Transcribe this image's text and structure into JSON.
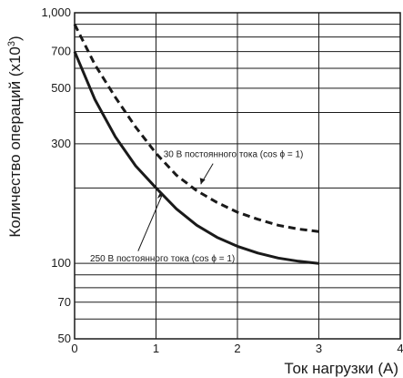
{
  "chart_data": {
    "type": "line",
    "xlabel": "Ток нагрузки (A)",
    "ylabel_main": "Количество операций (x10",
    "ylabel_exp": "3",
    "ylabel_close": ")",
    "xlim": [
      0,
      4
    ],
    "ylim": [
      50,
      1000
    ],
    "y_scale": "log",
    "grid": true,
    "x_ticks": [
      "0",
      "1",
      "2",
      "3",
      "4"
    ],
    "y_ticks": [
      {
        "value": 50,
        "label": "50"
      },
      {
        "value": 70,
        "label": "70"
      },
      {
        "value": 100,
        "label": "100"
      },
      {
        "value": 300,
        "label": "300"
      },
      {
        "value": 500,
        "label": "500"
      },
      {
        "value": 700,
        "label": "700"
      },
      {
        "value": 1000,
        "label": "1,000"
      }
    ],
    "y_minor": [
      60,
      80,
      90,
      200,
      400,
      600,
      800,
      900
    ],
    "series": [
      {
        "name": "30 В постоянного тока (cos ϕ = 1)",
        "style": "dashed",
        "color": "#1a1a1a",
        "x": [
          0,
          0.25,
          0.5,
          0.75,
          1.0,
          1.25,
          1.5,
          1.75,
          2.0,
          2.25,
          2.5,
          2.75,
          3.0
        ],
        "y": [
          900,
          620,
          460,
          350,
          275,
          225,
          195,
          175,
          160,
          150,
          142,
          137,
          134
        ]
      },
      {
        "name": "250 В постоянного тока (cos ϕ = 1)",
        "style": "solid",
        "color": "#1a1a1a",
        "x": [
          0,
          0.25,
          0.5,
          0.75,
          1.0,
          1.25,
          1.5,
          1.75,
          2.0,
          2.25,
          2.5,
          2.75,
          3.0
        ],
        "y": [
          700,
          450,
          320,
          245,
          200,
          165,
          142,
          127,
          117,
          110,
          105,
          102,
          100
        ]
      }
    ],
    "annotations": [
      {
        "text": "30 В постоянного тока (cos ϕ = 1)",
        "series": 0
      },
      {
        "text": "250 В постоянного тока (cos ϕ = 1)",
        "series": 1
      }
    ]
  }
}
